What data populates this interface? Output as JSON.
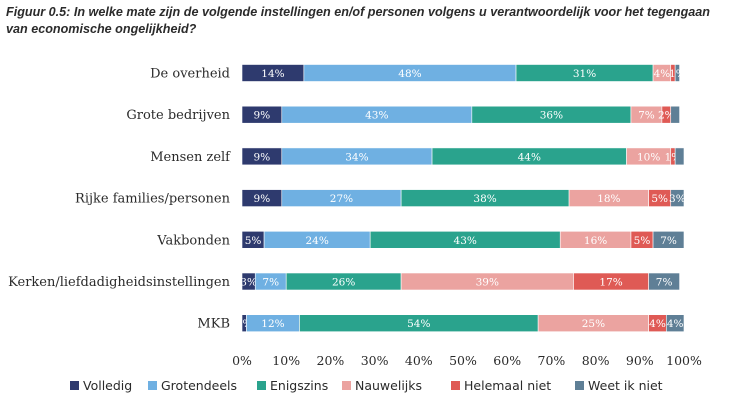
{
  "chart_data": {
    "type": "bar",
    "orientation": "horizontal",
    "stacked": true,
    "title": "Figuur 0.5: In welke mate zijn de volgende instellingen en/of personen volgens u verantwoordelijk voor het tegengaan van economische ongelijkheid?",
    "categories": [
      "De overheid",
      "Grote bedrijven",
      "Mensen zelf",
      "Rijke families/personen",
      "Vakbonden",
      "Kerken/liefdadigheidsinstellingen",
      "MKB"
    ],
    "series": [
      {
        "name": "Volledig",
        "color": "#2e3a6e",
        "values": [
          14,
          9,
          9,
          9,
          5,
          3,
          1
        ],
        "labels": [
          "14%",
          "9%",
          "9%",
          "9%",
          "5%",
          "3%",
          "1%"
        ]
      },
      {
        "name": "Grotendeels",
        "color": "#6fb0e2",
        "values": [
          48,
          43,
          34,
          27,
          24,
          7,
          12
        ],
        "labels": [
          "48%",
          "43%",
          "34%",
          "27%",
          "24%",
          "7%",
          "12%"
        ]
      },
      {
        "name": "Enigszins",
        "color": "#2aa38d",
        "values": [
          31,
          36,
          44,
          38,
          43,
          26,
          54
        ],
        "labels": [
          "31%",
          "36%",
          "44%",
          "38%",
          "43%",
          "26%",
          "54%"
        ]
      },
      {
        "name": "Nauwelijks",
        "color": "#eba3a0",
        "values": [
          4,
          7,
          10,
          18,
          16,
          39,
          25
        ],
        "labels": [
          "4%",
          "7%",
          "10%",
          "18%",
          "16%",
          "39%",
          "25%"
        ]
      },
      {
        "name": "Helemaal niet",
        "color": "#df5a55",
        "values": [
          1,
          2,
          1,
          5,
          5,
          17,
          4
        ],
        "labels": [
          "",
          "2%",
          "1%",
          "5%",
          "5%",
          "17%",
          "4%"
        ]
      },
      {
        "name": "Weet ik niet",
        "color": "#5f7f96",
        "values": [
          1,
          2,
          2,
          3,
          7,
          7,
          4
        ],
        "labels": [
          "1%",
          "",
          "",
          "3%",
          "7%",
          "7%",
          "4%"
        ]
      }
    ],
    "xlim": [
      0,
      100
    ],
    "xticks": [
      "0%",
      "10%",
      "20%",
      "30%",
      "40%",
      "50%",
      "60%",
      "70%",
      "80%",
      "90%",
      "100%"
    ],
    "legend_position": "bottom",
    "xlabel": "",
    "ylabel": ""
  }
}
